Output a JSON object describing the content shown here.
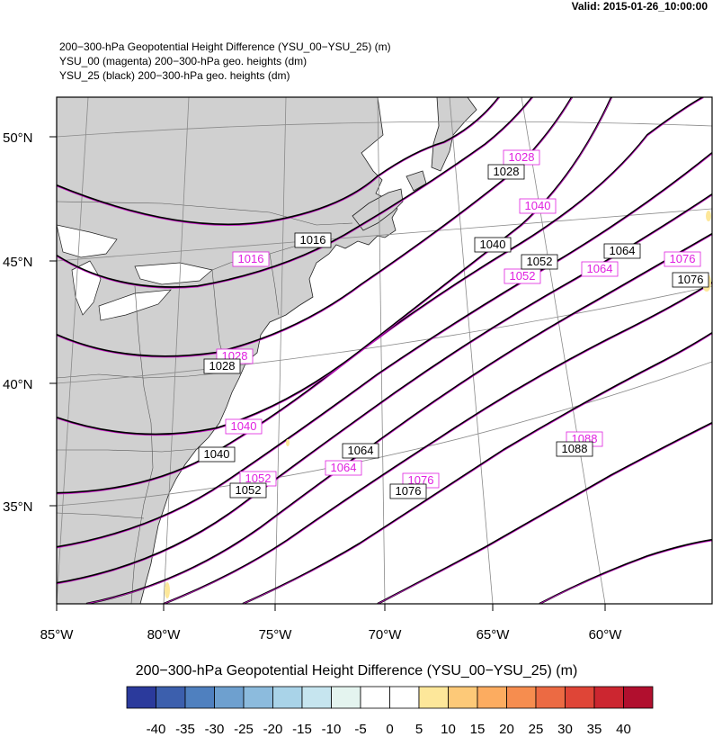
{
  "valid": "Valid: 2015-01-26_10:00:00",
  "titles": {
    "line1": "200−300-hPa Geopotential Height Difference (YSU_00−YSU_25)   (m)",
    "line2": "YSU_00 (magenta) 200−300-hPa geo. heights   (dm)",
    "line3": "YSU_25 (black) 200−300-hPa geo. heights   (dm)"
  },
  "axes": {
    "lat_labels": [
      "50°N",
      "45°N",
      "40°N",
      "35°N"
    ],
    "lon_labels": [
      "85°W",
      "80°W",
      "75°W",
      "70°W",
      "65°W",
      "60°W"
    ]
  },
  "contours": {
    "black_labels": [
      "1016",
      "1028",
      "1028",
      "1040",
      "1040",
      "1052",
      "1052",
      "1064",
      "1064",
      "1076",
      "1076",
      "1088"
    ],
    "magenta_labels": [
      "1016",
      "1028",
      "1028",
      "1040",
      "1040",
      "1052",
      "1052",
      "1064",
      "1064",
      "1076",
      "1076",
      "1088"
    ],
    "colors": {
      "ysu_00": "#e020e0",
      "ysu_25": "#000000"
    }
  },
  "colorbar": {
    "title": "200−300-hPa Geopotential Height Difference (YSU_00−YSU_25)  (m)",
    "colors": [
      "#2b3a9c",
      "#3c5fad",
      "#4f80bf",
      "#6ea0cf",
      "#8cbbdd",
      "#a9d3e8",
      "#c6e5ef",
      "#e4f4ef",
      "#ffffff",
      "#ffffff",
      "#fde79a",
      "#fdc978",
      "#fcac60",
      "#f68d4f",
      "#ec6a43",
      "#df4537",
      "#cc2630",
      "#b10f2e"
    ],
    "labels": [
      "-40",
      "-35",
      "-30",
      "-25",
      "-20",
      "-15",
      "-10",
      "-5",
      "0",
      "5",
      "10",
      "15",
      "20",
      "25",
      "30",
      "35",
      "40"
    ]
  }
}
